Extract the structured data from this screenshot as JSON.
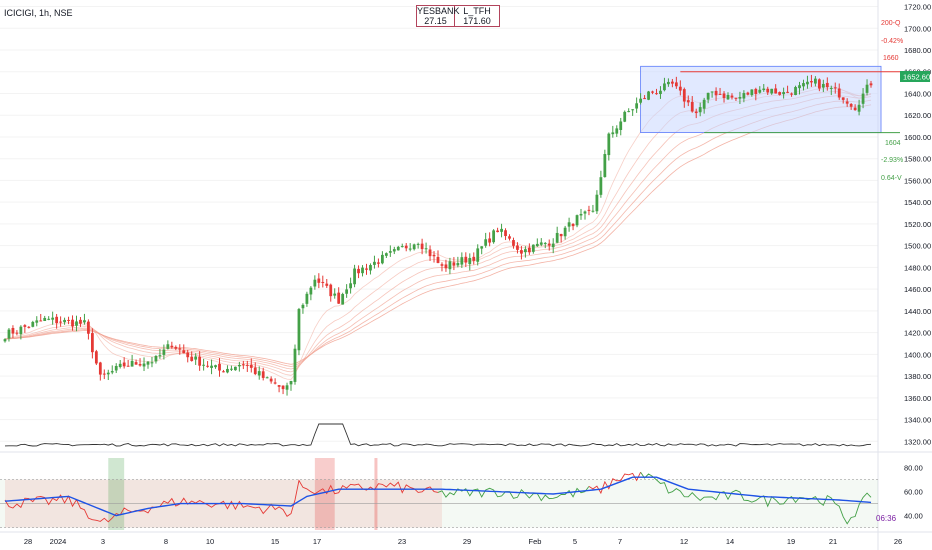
{
  "symbol": "ICICIGI, 1h, NSE",
  "compare_table": {
    "headers": [
      "YESBANK",
      "L_TFH"
    ],
    "values": [
      "27.15",
      "171.60"
    ]
  },
  "colors": {
    "up": "#43a047",
    "down": "#e53935",
    "ribbon": "#f0a090",
    "box": "#c9d7ff",
    "box_border": "#5c7cfa",
    "rsi": "#43a047",
    "rsi_ma": "#1e53e5",
    "last_price_bg": "#26a65b"
  },
  "right_labels": {
    "target_up_label": "200-Q",
    "target_up_pct": "-0.42%",
    "box_top": "1660",
    "last_price": "1652.60",
    "box_bottom": "1604",
    "target_down_pct": "-2.93%",
    "target_down_label": "0.64-V",
    "countdown": "06:36"
  },
  "chart_data": {
    "type": "candlestick",
    "price_axis": {
      "ticks": [
        "1720.00",
        "1700.00",
        "1680.00",
        "1660.00",
        "1640.00",
        "1620.00",
        "1600.00",
        "1580.00",
        "1560.00",
        "1540.00",
        "1520.00",
        "1500.00",
        "1480.00",
        "1460.00",
        "1440.00",
        "1420.00",
        "1400.00",
        "1380.00",
        "1360.00",
        "1340.00",
        "1320.00"
      ],
      "ylim": [
        1312,
        1726
      ]
    },
    "rsi_axis": {
      "ticks": [
        "80.00",
        "60.00",
        "40.00"
      ],
      "ylim": [
        28,
        88
      ],
      "levels": [
        70,
        50,
        30
      ]
    },
    "x_axis": {
      "labels": [
        "28",
        "2024",
        "3",
        "8",
        "10",
        "15",
        "17",
        "23",
        "29",
        "Feb",
        "5",
        "7",
        "12",
        "14",
        "19",
        "21",
        "26"
      ]
    },
    "box": {
      "top": 1665,
      "bottom": 1604,
      "resistance": 1660
    },
    "waypoints": [
      [
        0,
        1418
      ],
      [
        10,
        1432
      ],
      [
        20,
        1428
      ],
      [
        22,
        1405
      ],
      [
        24,
        1378
      ],
      [
        30,
        1390
      ],
      [
        38,
        1395
      ],
      [
        42,
        1410
      ],
      [
        46,
        1398
      ],
      [
        54,
        1385
      ],
      [
        60,
        1392
      ],
      [
        66,
        1376
      ],
      [
        70,
        1368
      ],
      [
        72,
        1372
      ],
      [
        74,
        1440
      ],
      [
        78,
        1470
      ],
      [
        84,
        1450
      ],
      [
        88,
        1475
      ],
      [
        96,
        1490
      ],
      [
        104,
        1505
      ],
      [
        110,
        1480
      ],
      [
        118,
        1490
      ],
      [
        124,
        1515
      ],
      [
        130,
        1495
      ],
      [
        138,
        1505
      ],
      [
        144,
        1525
      ],
      [
        148,
        1530
      ],
      [
        152,
        1600
      ],
      [
        156,
        1620
      ],
      [
        162,
        1640
      ],
      [
        168,
        1648
      ],
      [
        174,
        1622
      ],
      [
        178,
        1642
      ],
      [
        184,
        1635
      ],
      [
        190,
        1645
      ],
      [
        196,
        1640
      ],
      [
        204,
        1650
      ],
      [
        210,
        1640
      ],
      [
        214,
        1628
      ],
      [
        218,
        1650
      ]
    ],
    "rsi_waypoints": [
      [
        0,
        50
      ],
      [
        16,
        53
      ],
      [
        20,
        45
      ],
      [
        24,
        33
      ],
      [
        30,
        42
      ],
      [
        38,
        48
      ],
      [
        44,
        52
      ],
      [
        54,
        50
      ],
      [
        62,
        47
      ],
      [
        70,
        45
      ],
      [
        72,
        42
      ],
      [
        74,
        65
      ],
      [
        80,
        60
      ],
      [
        96,
        65
      ],
      [
        110,
        58
      ],
      [
        124,
        60
      ],
      [
        138,
        56
      ],
      [
        150,
        62
      ],
      [
        156,
        74
      ],
      [
        162,
        72
      ],
      [
        168,
        60
      ],
      [
        176,
        54
      ],
      [
        184,
        57
      ],
      [
        192,
        52
      ],
      [
        200,
        56
      ],
      [
        208,
        52
      ],
      [
        212,
        36
      ],
      [
        218,
        58
      ]
    ],
    "rsi_ma_waypoints": [
      [
        0,
        52
      ],
      [
        16,
        56
      ],
      [
        22,
        48
      ],
      [
        28,
        40
      ],
      [
        36,
        46
      ],
      [
        44,
        50
      ],
      [
        60,
        50
      ],
      [
        72,
        48
      ],
      [
        76,
        56
      ],
      [
        84,
        62
      ],
      [
        110,
        62
      ],
      [
        138,
        58
      ],
      [
        150,
        62
      ],
      [
        158,
        72
      ],
      [
        164,
        72
      ],
      [
        172,
        62
      ],
      [
        190,
        56
      ],
      [
        210,
        53
      ],
      [
        218,
        51
      ]
    ]
  }
}
